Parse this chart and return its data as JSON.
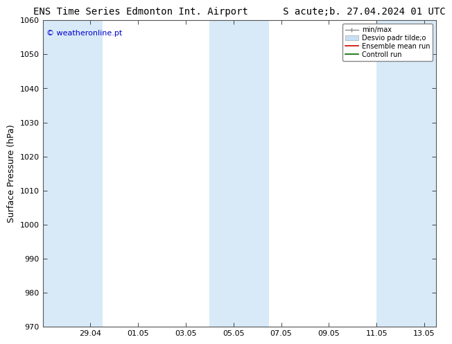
{
  "title": "ENS Time Series Edmonton Int. Airport",
  "subtitle": "S acute;b. 27.04.2024 01 UTC",
  "ylabel": "Surface Pressure (hPa)",
  "ylim": [
    970,
    1060
  ],
  "yticks": [
    970,
    980,
    990,
    1000,
    1010,
    1020,
    1030,
    1040,
    1050,
    1060
  ],
  "xlim": [
    0.0,
    16.5
  ],
  "xtick_labels": [
    "29.04",
    "01.05",
    "03.05",
    "05.05",
    "07.05",
    "09.05",
    "11.05",
    "13.05"
  ],
  "xtick_positions": [
    2.0,
    4.0,
    6.0,
    8.0,
    10.0,
    12.0,
    14.0,
    16.0
  ],
  "shaded_bands": [
    {
      "xmin": 0.0,
      "xmax": 2.5
    },
    {
      "xmin": 7.0,
      "xmax": 9.5
    },
    {
      "xmin": 14.0,
      "xmax": 16.5
    }
  ],
  "shaded_color": "#d8eaf8",
  "bg_color": "#ffffff",
  "watermark_text": "© weatheronline.pt",
  "watermark_color": "#0000cc",
  "legend_entries": [
    "min/max",
    "Desvio padr tilde;o",
    "Ensemble mean run",
    "Controll run"
  ],
  "title_fontsize": 10,
  "tick_fontsize": 8,
  "ylabel_fontsize": 9
}
